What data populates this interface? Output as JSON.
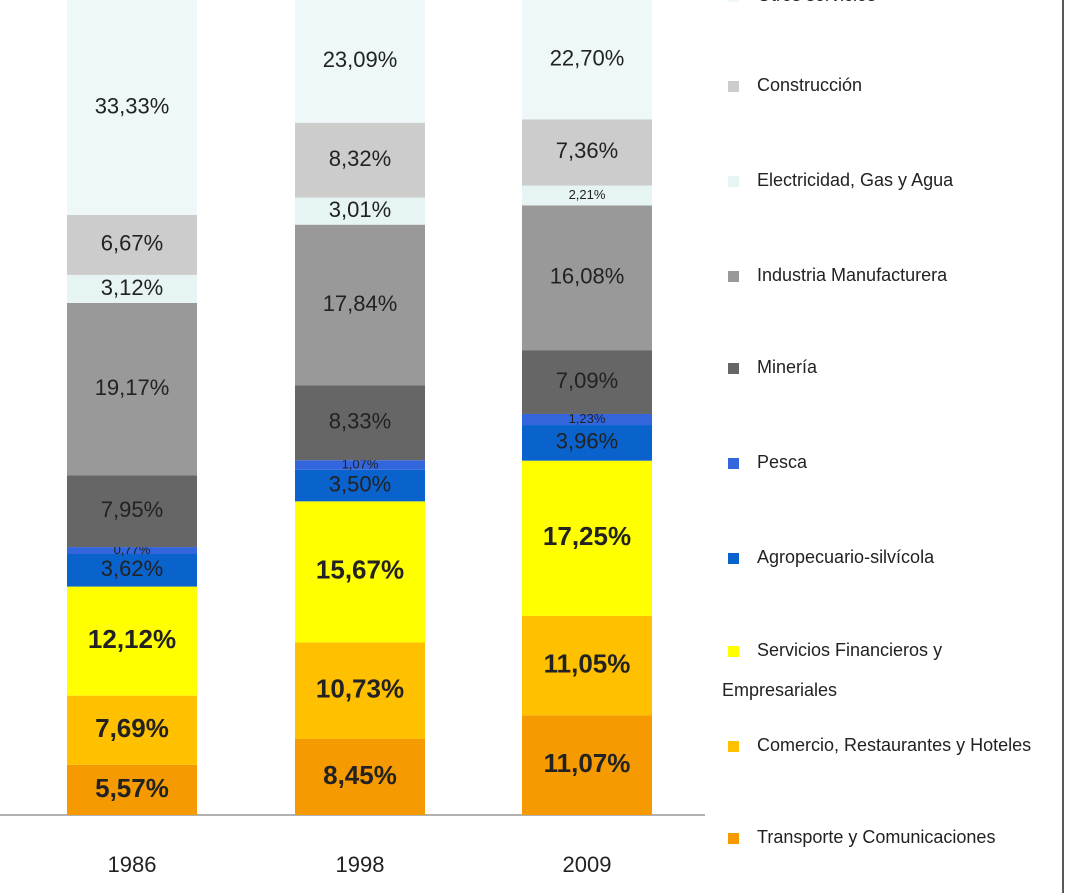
{
  "chart_data": {
    "type": "stacked-bar",
    "categories": [
      "1986",
      "1998",
      "2009"
    ],
    "series": [
      {
        "name": "Transporte y Comunicaciones",
        "color": "#f59a00",
        "values": [
          5.57,
          8.45,
          11.07
        ],
        "value_labels": [
          "5,57%",
          "8,45%",
          "11,07%"
        ]
      },
      {
        "name": "Comercio, Restaurantes y Hoteles",
        "color": "#ffc000",
        "values": [
          7.69,
          10.73,
          11.05
        ],
        "value_labels": [
          "7,69%",
          "10,73%",
          "11,05%"
        ]
      },
      {
        "name": "Servicios Financieros y Empresariales",
        "color": "#ffff00",
        "values": [
          12.12,
          15.67,
          17.25
        ],
        "value_labels": [
          "12,12%",
          "15,67%",
          "17,25%"
        ]
      },
      {
        "name": "Agropecuario-silvícola",
        "color": "#0a62cc",
        "values": [
          3.62,
          3.5,
          3.96
        ],
        "value_labels": [
          "3,62%",
          "3,50%",
          "3,96%"
        ]
      },
      {
        "name": "Pesca",
        "color": "#3366dd",
        "values": [
          0.77,
          1.07,
          1.23
        ],
        "value_labels": [
          "0,77%",
          "1,07%",
          "1,23%"
        ]
      },
      {
        "name": "Minería",
        "color": "#666666",
        "values": [
          7.95,
          8.33,
          7.09
        ],
        "value_labels": [
          "7,95%",
          "8,33%",
          "7,09%"
        ]
      },
      {
        "name": "Industria Manufacturera",
        "color": "#999999",
        "values": [
          19.17,
          17.84,
          16.08
        ],
        "value_labels": [
          "19,17%",
          "17,84%",
          "16,08%"
        ]
      },
      {
        "name": "Electricidad, Gas y Agua",
        "color": "#e6f4f4",
        "values": [
          3.12,
          3.01,
          2.21
        ],
        "value_labels": [
          "3,12%",
          "3,01%",
          "2,21%"
        ]
      },
      {
        "name": "Construcción",
        "color": "#cccccc",
        "values": [
          6.67,
          8.32,
          7.36
        ],
        "value_labels": [
          "6,67%",
          "8,32%",
          "7,36%"
        ]
      },
      {
        "name": "Otros servicios",
        "color": "#eef8f8",
        "values": [
          33.33,
          23.09,
          22.7
        ],
        "value_labels": [
          "33,33%",
          "23,09%",
          "22,70%"
        ]
      }
    ]
  }
}
